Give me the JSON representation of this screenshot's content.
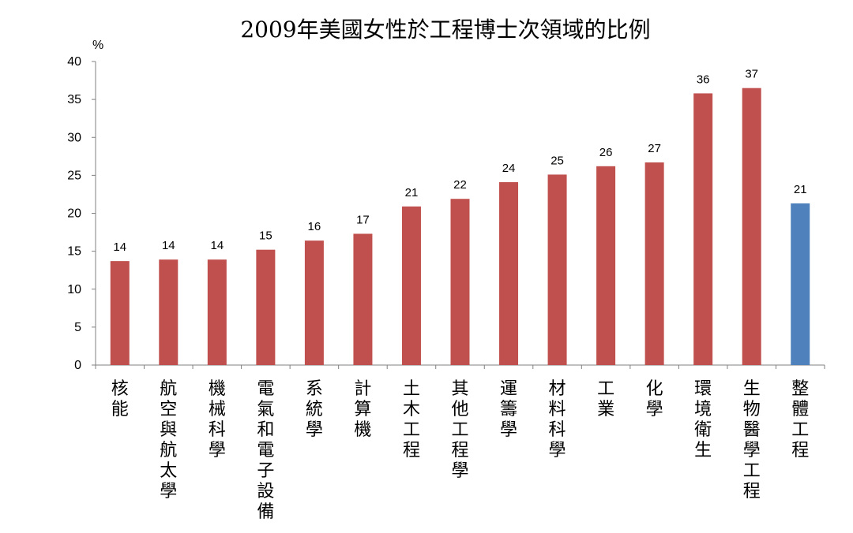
{
  "chart_data": {
    "type": "bar",
    "title": "2009年美國女性於工程博士次領域的比例",
    "ylabel": "%",
    "xlabel": "",
    "ylim": [
      0,
      40
    ],
    "yticks": [
      "0",
      "5",
      "10",
      "15",
      "20",
      "25",
      "30",
      "35",
      "40"
    ],
    "grid": false,
    "legend": "none",
    "categories": [
      "核能",
      "航空與航太學",
      "機械科學",
      "電氣和電子設備",
      "系統學",
      "計算機",
      "土木工程",
      "其他工程學",
      "運籌學",
      "材料科學",
      "工業",
      "化學",
      "環境衛生",
      "生物醫學工程",
      "整體工程"
    ],
    "values": [
      13.7,
      13.9,
      13.9,
      15.2,
      16.4,
      17.3,
      20.9,
      21.9,
      24.1,
      25.1,
      26.2,
      26.7,
      35.8,
      36.5,
      21.3
    ],
    "data_labels": [
      "14",
      "14",
      "14",
      "15",
      "16",
      "17",
      "21",
      "22",
      "24",
      "25",
      "26",
      "27",
      "36",
      "37",
      "21"
    ],
    "colors": {
      "default": "#c0504d",
      "highlight": "#4f81bd",
      "axis": "#808080",
      "text": "#000000"
    },
    "highlight_index": 14
  }
}
